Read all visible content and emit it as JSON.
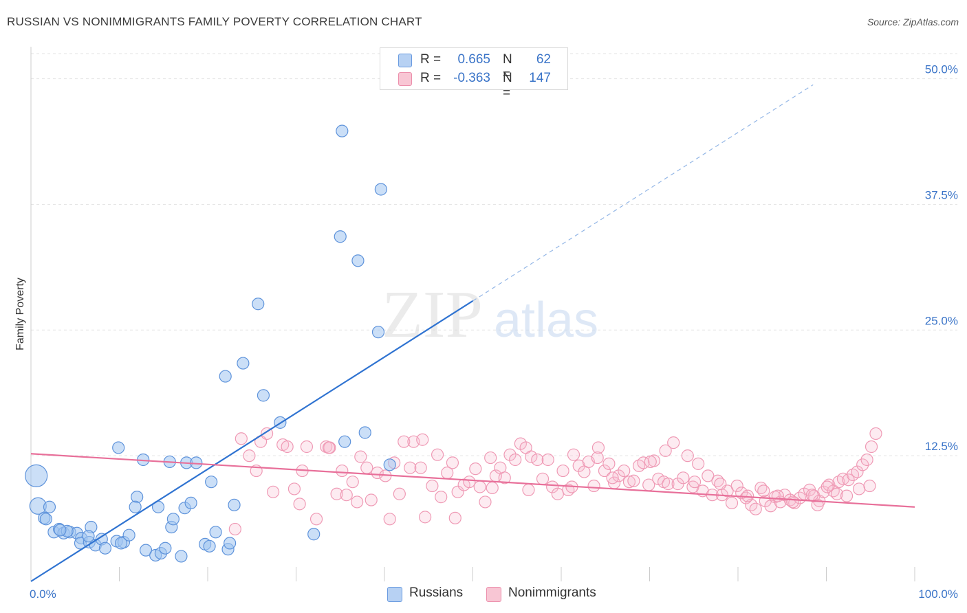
{
  "title": "RUSSIAN VS NONIMMIGRANTS FAMILY POVERTY CORRELATION CHART",
  "source": "Source: ZipAtlas.com",
  "watermark": {
    "zip": "ZIP",
    "atlas": "atlas"
  },
  "legend": {
    "r_label": "R =",
    "n_label": "N =",
    "series": [
      {
        "name": "Russians",
        "r": "0.665",
        "n": "62",
        "fill": "#b7d1f3",
        "stroke": "#6a9be0"
      },
      {
        "name": "Nonimmigrants",
        "r": "-0.363",
        "n": "147",
        "fill": "#f8c6d4",
        "stroke": "#ec8fac"
      }
    ]
  },
  "colors": {
    "blue_line": "#2f73d1",
    "pink_line": "#e8709a",
    "blue_dot_fill": "rgba(160,196,240,0.55)",
    "blue_dot_stroke": "#5e93db",
    "pink_dot_fill": "rgba(247,190,208,0.30)",
    "pink_dot_stroke": "#ef9ab5",
    "tick_label": "#3a74c8",
    "grid": "#e3e3e3"
  },
  "chart_data": {
    "type": "scatter",
    "title": "RUSSIAN VS NONIMMIGRANTS FAMILY POVERTY CORRELATION CHART",
    "xlabel": "",
    "ylabel": "Family Poverty",
    "xlim": [
      0,
      100
    ],
    "ylim": [
      0,
      52.5
    ],
    "x_tick_labels": [
      {
        "value": 0,
        "label": "0.0%"
      },
      {
        "value": 100,
        "label": "100.0%"
      }
    ],
    "y_tick_labels": [
      {
        "value": 12.5,
        "label": "12.5%"
      },
      {
        "value": 25,
        "label": "25.0%"
      },
      {
        "value": 37.5,
        "label": "37.5%"
      },
      {
        "value": 50,
        "label": "50.0%"
      }
    ],
    "grid": true,
    "series": [
      {
        "name": "Russians",
        "r": 0.665,
        "n": 62,
        "trend": {
          "x0": 0,
          "y0": 0,
          "x1": 50,
          "y1": 27.9,
          "extended_to_x": 88.5,
          "extended_to_y": 49.4
        },
        "points": [
          [
            0.6,
            10.5,
            "xl"
          ],
          [
            0.8,
            7.5,
            "l"
          ],
          [
            1.5,
            6.3,
            "m"
          ],
          [
            2.1,
            7.4,
            "m"
          ],
          [
            1.7,
            6.2,
            "m"
          ],
          [
            2.6,
            4.9,
            "m"
          ],
          [
            3.2,
            5.2,
            "m"
          ],
          [
            3.7,
            4.8,
            "m"
          ],
          [
            4.4,
            4.9,
            "m"
          ],
          [
            5.2,
            4.8,
            "m"
          ],
          [
            5.7,
            4.3,
            "m"
          ],
          [
            5.6,
            3.8,
            "m"
          ],
          [
            6.8,
            5.4,
            "m"
          ],
          [
            6.6,
            3.9,
            "m"
          ],
          [
            7.3,
            3.6,
            "m"
          ],
          [
            8.0,
            4.2,
            "m"
          ],
          [
            8.4,
            3.3,
            "m"
          ],
          [
            9.7,
            4.0,
            "m"
          ],
          [
            10.5,
            3.9,
            "m"
          ],
          [
            11.1,
            4.6,
            "m"
          ],
          [
            10.2,
            3.8,
            "m"
          ],
          [
            9.9,
            13.3,
            "m"
          ],
          [
            12.7,
            12.1,
            "m"
          ],
          [
            12.0,
            8.4,
            "m"
          ],
          [
            11.8,
            7.4,
            "m"
          ],
          [
            13.0,
            3.1,
            "m"
          ],
          [
            14.1,
            2.6,
            "m"
          ],
          [
            14.7,
            2.8,
            "m"
          ],
          [
            15.2,
            3.3,
            "m"
          ],
          [
            15.9,
            5.4,
            "m"
          ],
          [
            14.4,
            7.4,
            "m"
          ],
          [
            15.7,
            11.9,
            "m"
          ],
          [
            16.1,
            6.2,
            "m"
          ],
          [
            17.0,
            2.5,
            "m"
          ],
          [
            17.4,
            7.3,
            "m"
          ],
          [
            17.6,
            11.8,
            "m"
          ],
          [
            18.1,
            7.8,
            "m"
          ],
          [
            18.7,
            11.8,
            "m"
          ],
          [
            19.7,
            3.7,
            "m"
          ],
          [
            20.2,
            3.5,
            "m"
          ],
          [
            20.9,
            4.9,
            "m"
          ],
          [
            20.4,
            9.9,
            "m"
          ],
          [
            22.3,
            3.2,
            "m"
          ],
          [
            22.5,
            3.8,
            "m"
          ],
          [
            23.0,
            7.6,
            "m"
          ],
          [
            22.0,
            20.4,
            "m"
          ],
          [
            24.0,
            21.7,
            "m"
          ],
          [
            25.7,
            27.6,
            "m"
          ],
          [
            26.3,
            18.5,
            "m"
          ],
          [
            28.2,
            15.8,
            "m"
          ],
          [
            32.0,
            4.7,
            "m"
          ],
          [
            35.2,
            44.8,
            "m"
          ],
          [
            35.0,
            34.3,
            "m"
          ],
          [
            35.5,
            13.9,
            "m"
          ],
          [
            37.0,
            31.9,
            "m"
          ],
          [
            39.3,
            24.8,
            "m"
          ],
          [
            39.6,
            39.0,
            "m"
          ],
          [
            37.8,
            14.8,
            "m"
          ],
          [
            40.6,
            11.6,
            "m"
          ],
          [
            6.5,
            4.5,
            "m"
          ],
          [
            4.1,
            5.0,
            "m"
          ],
          [
            3.3,
            5.1,
            "m"
          ]
        ]
      },
      {
        "name": "Nonimmigrants",
        "r": -0.363,
        "n": 147,
        "trend": {
          "x0": 0,
          "y0": 12.7,
          "x1": 100,
          "y1": 7.4
        },
        "points": [
          [
            24.7,
            12.5
          ],
          [
            25.5,
            11.0
          ],
          [
            26.0,
            13.9
          ],
          [
            26.7,
            14.7
          ],
          [
            27.4,
            8.9
          ],
          [
            28.5,
            13.6
          ],
          [
            29.0,
            13.4
          ],
          [
            29.8,
            9.2
          ],
          [
            30.7,
            11.0
          ],
          [
            31.2,
            13.4
          ],
          [
            32.3,
            6.2
          ],
          [
            33.4,
            13.4
          ],
          [
            33.8,
            13.3
          ],
          [
            34.6,
            8.7
          ],
          [
            35.2,
            11.0
          ],
          [
            35.7,
            8.6
          ],
          [
            36.4,
            9.9
          ],
          [
            37.3,
            12.4
          ],
          [
            38.0,
            11.3
          ],
          [
            38.5,
            8.1
          ],
          [
            39.2,
            10.8
          ],
          [
            40.1,
            10.5
          ],
          [
            41.1,
            11.8
          ],
          [
            41.7,
            8.7
          ],
          [
            42.2,
            13.9
          ],
          [
            42.9,
            11.3
          ],
          [
            43.3,
            13.9
          ],
          [
            44.1,
            11.3
          ],
          [
            44.6,
            6.4
          ],
          [
            45.4,
            9.5
          ],
          [
            46.0,
            12.6
          ],
          [
            46.4,
            8.4
          ],
          [
            47.1,
            10.8
          ],
          [
            47.7,
            11.8
          ],
          [
            48.3,
            8.9
          ],
          [
            49.0,
            9.6
          ],
          [
            49.6,
            9.9
          ],
          [
            50.3,
            11.2
          ],
          [
            50.8,
            9.4
          ],
          [
            51.4,
            7.9
          ],
          [
            52.0,
            12.3
          ],
          [
            52.6,
            10.5
          ],
          [
            53.1,
            11.3
          ],
          [
            53.6,
            10.3
          ],
          [
            54.2,
            12.6
          ],
          [
            54.8,
            12.1
          ],
          [
            55.4,
            13.7
          ],
          [
            56.0,
            13.3
          ],
          [
            56.6,
            12.4
          ],
          [
            57.3,
            12.1
          ],
          [
            57.9,
            10.2
          ],
          [
            58.5,
            12.1
          ],
          [
            59.0,
            9.4
          ],
          [
            59.6,
            8.7
          ],
          [
            60.2,
            11.0
          ],
          [
            60.8,
            9.1
          ],
          [
            61.4,
            12.6
          ],
          [
            62.0,
            11.5
          ],
          [
            62.6,
            10.9
          ],
          [
            63.1,
            11.9
          ],
          [
            63.7,
            9.5
          ],
          [
            64.2,
            13.3
          ],
          [
            64.9,
            11.0
          ],
          [
            65.4,
            11.7
          ],
          [
            66.0,
            9.8
          ],
          [
            66.5,
            10.5
          ],
          [
            67.1,
            11.0
          ],
          [
            67.7,
            9.9
          ],
          [
            68.2,
            10.0
          ],
          [
            68.8,
            11.5
          ],
          [
            69.3,
            11.8
          ],
          [
            69.9,
            9.6
          ],
          [
            70.5,
            12.0
          ],
          [
            71.0,
            10.2
          ],
          [
            71.6,
            9.9
          ],
          [
            72.1,
            9.7
          ],
          [
            72.7,
            13.8
          ],
          [
            73.2,
            9.7
          ],
          [
            73.8,
            10.3
          ],
          [
            74.3,
            12.5
          ],
          [
            74.9,
            9.4
          ],
          [
            75.5,
            11.7
          ],
          [
            76.0,
            9.0
          ],
          [
            76.6,
            10.5
          ],
          [
            77.1,
            8.6
          ],
          [
            77.7,
            10.0
          ],
          [
            78.2,
            8.6
          ],
          [
            78.8,
            9.0
          ],
          [
            79.3,
            7.8
          ],
          [
            79.9,
            9.5
          ],
          [
            80.4,
            8.8
          ],
          [
            80.9,
            8.3
          ],
          [
            81.5,
            7.6
          ],
          [
            82.0,
            7.2
          ],
          [
            82.6,
            9.3
          ],
          [
            83.1,
            8.0
          ],
          [
            83.7,
            7.5
          ],
          [
            84.2,
            8.4
          ],
          [
            84.8,
            7.9
          ],
          [
            85.3,
            8.6
          ],
          [
            85.9,
            8.1
          ],
          [
            86.4,
            7.8
          ],
          [
            87.0,
            8.3
          ],
          [
            87.5,
            8.7
          ],
          [
            88.1,
            9.1
          ],
          [
            88.6,
            8.5
          ],
          [
            89.2,
            8.0
          ],
          [
            89.7,
            8.9
          ],
          [
            90.3,
            9.6
          ],
          [
            90.8,
            9.0
          ],
          [
            91.4,
            9.9
          ],
          [
            91.9,
            10.2
          ],
          [
            92.5,
            10.1
          ],
          [
            93.0,
            10.6
          ],
          [
            93.5,
            10.9
          ],
          [
            94.1,
            11.6
          ],
          [
            94.6,
            12.1
          ],
          [
            95.1,
            13.4
          ],
          [
            95.6,
            14.7
          ],
          [
            23.1,
            5.2
          ],
          [
            30.4,
            7.7
          ],
          [
            33.7,
            13.3
          ],
          [
            40.6,
            6.2
          ],
          [
            44.3,
            14.1
          ],
          [
            48.0,
            6.3
          ],
          [
            52.2,
            9.3
          ],
          [
            56.3,
            9.1
          ],
          [
            61.2,
            9.4
          ],
          [
            64.1,
            12.3
          ],
          [
            65.8,
            10.3
          ],
          [
            70.1,
            11.9
          ],
          [
            71.8,
            13.0
          ],
          [
            75.1,
            9.9
          ],
          [
            78.0,
            9.7
          ],
          [
            81.1,
            8.5
          ],
          [
            82.9,
            9.0
          ],
          [
            84.5,
            8.5
          ],
          [
            86.2,
            7.9
          ],
          [
            88.4,
            8.6
          ],
          [
            89.0,
            7.6
          ],
          [
            90.1,
            9.4
          ],
          [
            91.2,
            8.7
          ],
          [
            92.3,
            8.5
          ],
          [
            93.7,
            9.2
          ],
          [
            94.9,
            9.5
          ],
          [
            23.8,
            14.2
          ],
          [
            36.9,
            7.9
          ]
        ]
      }
    ]
  }
}
